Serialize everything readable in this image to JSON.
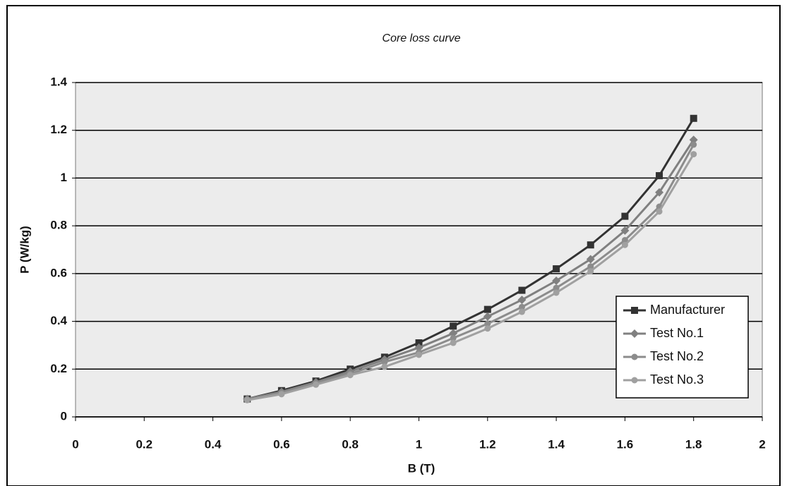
{
  "chart_data": {
    "type": "line",
    "title": "Core loss curve",
    "x_label": "B (T)",
    "y_label": "P (W/kg)",
    "x": [
      0.5,
      0.6,
      0.7,
      0.8,
      0.9,
      1.0,
      1.1,
      1.2,
      1.3,
      1.4,
      1.5,
      1.6,
      1.7,
      1.8
    ],
    "series": [
      {
        "name": "Manufacturer",
        "color": "#333333",
        "marker": "square",
        "values": [
          0.075,
          0.11,
          0.15,
          0.2,
          0.25,
          0.31,
          0.38,
          0.45,
          0.53,
          0.62,
          0.72,
          0.84,
          1.01,
          1.25
        ]
      },
      {
        "name": "Test No.1",
        "color": "#808080",
        "marker": "diamond",
        "values": [
          0.075,
          0.105,
          0.145,
          0.19,
          0.24,
          0.29,
          0.35,
          0.42,
          0.49,
          0.57,
          0.66,
          0.78,
          0.94,
          1.16
        ]
      },
      {
        "name": "Test No.2",
        "color": "#8c8c8c",
        "marker": "circle",
        "values": [
          0.072,
          0.1,
          0.14,
          0.18,
          0.23,
          0.27,
          0.33,
          0.39,
          0.46,
          0.54,
          0.63,
          0.74,
          0.88,
          1.14
        ]
      },
      {
        "name": "Test No.3",
        "color": "#a0a0a0",
        "marker": "circle",
        "values": [
          0.07,
          0.095,
          0.135,
          0.175,
          0.21,
          0.26,
          0.31,
          0.37,
          0.44,
          0.52,
          0.61,
          0.72,
          0.86,
          1.1
        ]
      }
    ],
    "xlim": [
      0,
      2
    ],
    "xticks": [
      0,
      0.2,
      0.4,
      0.6,
      0.8,
      1,
      1.2,
      1.4,
      1.6,
      1.8,
      2
    ],
    "ylim": [
      0,
      1.4
    ],
    "yticks": [
      0,
      0.2,
      0.4,
      0.6,
      0.8,
      1,
      1.2,
      1.4
    ],
    "grid": true,
    "legend": "lower right"
  }
}
